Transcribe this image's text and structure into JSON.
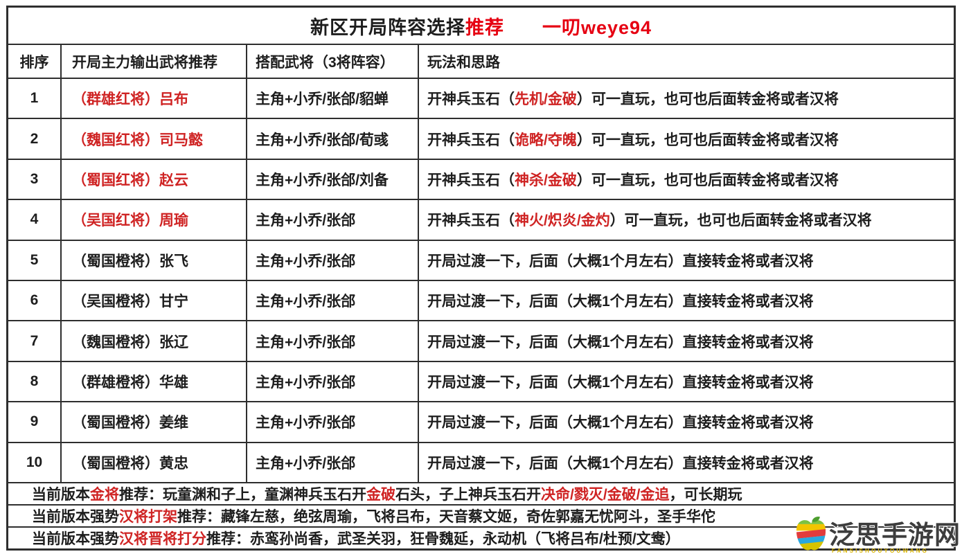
{
  "title": {
    "main": "新区开局阵容选择",
    "highlight": "推荐",
    "author": "一叨weye94"
  },
  "columns": [
    "排序",
    "开局主力输出武将推荐",
    "搭配武将（3将阵容）",
    "玩法和思路"
  ],
  "rows": [
    {
      "rank": "1",
      "hero": "（群雄红将）吕布",
      "hero_color": "red",
      "combo": "主角+小乔/张郃/貂蝉",
      "strategy": [
        {
          "t": "开神兵玉石（"
        },
        {
          "t": "先机/金破",
          "red": true
        },
        {
          "t": "）可一直玩，也可也后面转金将或者汉将"
        }
      ]
    },
    {
      "rank": "2",
      "hero": "（魏国红将）司马懿",
      "hero_color": "red",
      "combo": "主角+小乔/张郃/荀彧",
      "strategy": [
        {
          "t": "开神兵玉石（"
        },
        {
          "t": "诡略/夺魄",
          "red": true
        },
        {
          "t": "）可一直玩，也可也后面转金将或者汉将"
        }
      ]
    },
    {
      "rank": "3",
      "hero": "（蜀国红将）赵云",
      "hero_color": "red",
      "combo": "主角+小乔/张郃/刘备",
      "strategy": [
        {
          "t": "开神兵玉石（"
        },
        {
          "t": "神杀/金破",
          "red": true
        },
        {
          "t": "）可一直玩，也可也后面转金将或者汉将"
        }
      ]
    },
    {
      "rank": "4",
      "hero": "（吴国红将）周瑜",
      "hero_color": "red",
      "combo": "主角+小乔/张郃",
      "strategy": [
        {
          "t": "开神兵玉石（"
        },
        {
          "t": "神火/炽炎/金灼",
          "red": true
        },
        {
          "t": "）可一直玩，也可也后面转金将或者汉将"
        }
      ]
    },
    {
      "rank": "5",
      "hero": "（蜀国橙将）张飞",
      "hero_color": "black",
      "combo": "主角+小乔/张郃",
      "strategy": [
        {
          "t": "开局过渡一下，后面（大概1个月左右）直接转金将或者汉将"
        }
      ]
    },
    {
      "rank": "6",
      "hero": "（吴国橙将）甘宁",
      "hero_color": "black",
      "combo": "主角+小乔/张郃",
      "strategy": [
        {
          "t": "开局过渡一下，后面（大概1个月左右）直接转金将或者汉将"
        }
      ]
    },
    {
      "rank": "7",
      "hero": "（魏国橙将）张辽",
      "hero_color": "black",
      "combo": "主角+小乔/张郃",
      "strategy": [
        {
          "t": "开局过渡一下，后面（大概1个月左右）直接转金将或者汉将"
        }
      ]
    },
    {
      "rank": "8",
      "hero": "（群雄橙将）华雄",
      "hero_color": "black",
      "combo": "主角+小乔/张郃",
      "strategy": [
        {
          "t": "开局过渡一下，后面（大概1个月左右）直接转金将或者汉将"
        }
      ]
    },
    {
      "rank": "9",
      "hero": "（蜀国橙将）姜维",
      "hero_color": "black",
      "combo": "主角+小乔/张郃",
      "strategy": [
        {
          "t": "开局过渡一下，后面（大概1个月左右）直接转金将或者汉将"
        }
      ]
    },
    {
      "rank": "10",
      "hero": "（蜀国橙将）黄忠",
      "hero_color": "black",
      "combo": "主角+小乔/张郃",
      "strategy": [
        {
          "t": "开局过渡一下，后面（大概1个月左右）直接转金将或者汉将"
        }
      ]
    }
  ],
  "footers": [
    {
      "segments": [
        {
          "t": "当前版本"
        },
        {
          "t": "金将",
          "red": true
        },
        {
          "t": "推荐：玩童渊和子上，童渊神兵玉石开"
        },
        {
          "t": "金破",
          "red": true
        },
        {
          "t": "石头，子上神兵玉石开"
        },
        {
          "t": "决命/戮灭/金破/金追",
          "red": true
        },
        {
          "t": "，可长期玩"
        }
      ]
    },
    {
      "segments": [
        {
          "t": "当前版本强势"
        },
        {
          "t": "汉将打架",
          "red": true
        },
        {
          "t": "推荐：藏锋左慈，绝弦周瑜，飞将吕布，天音蔡文姬，奇佐郭嘉无忧阿斗，圣手华佗"
        }
      ]
    },
    {
      "segments": [
        {
          "t": "当前版本强势"
        },
        {
          "t": "汉将晋将打分",
          "red": true
        },
        {
          "t": "推荐：赤鸾孙尚香，武圣关羽，狂骨魏延，永动机（飞将吕布/杜预/文鸯）"
        }
      ]
    }
  ],
  "watermark": {
    "site": "泛思手游网",
    "latin": "FANSISHOUYOUWANG"
  },
  "colors": {
    "red": "#cf2323",
    "title_red": "#e60012",
    "text": "#1d1d1d",
    "border": "#2e2e2e"
  }
}
